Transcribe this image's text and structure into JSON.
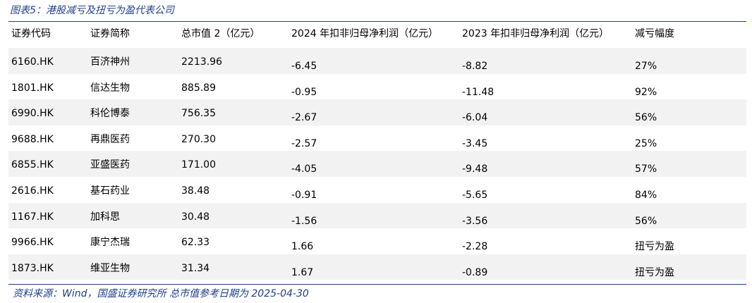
{
  "header": {
    "title": "图表5：港股减亏及扭亏为盈代表公司"
  },
  "table": {
    "columns": [
      "证券代码",
      "证券简称",
      "总市值 2（亿元）",
      "2024 年扣非归母净利润（亿元）",
      "2023 年扣非归母净利润（亿元）",
      "减亏幅度"
    ],
    "rows": [
      [
        "6160.HK",
        "百济神州",
        "2213.96",
        "-6.45",
        "-8.82",
        "27%"
      ],
      [
        "1801.HK",
        "信达生物",
        "885.89",
        "-0.95",
        "-11.48",
        "92%"
      ],
      [
        "6990.HK",
        "科伦博泰",
        "756.35",
        "-2.67",
        "-6.04",
        "56%"
      ],
      [
        "9688.HK",
        "再鼎医药",
        "270.30",
        "-2.57",
        "-3.45",
        "25%"
      ],
      [
        "6855.HK",
        "亚盛医药",
        "171.00",
        "-4.05",
        "-9.48",
        "57%"
      ],
      [
        "2616.HK",
        "基石药业",
        "38.48",
        "-0.91",
        "-5.65",
        "84%"
      ],
      [
        "1167.HK",
        "加科思",
        "30.48",
        "-1.56",
        "-3.56",
        "56%"
      ],
      [
        "9966.HK",
        "康宁杰瑞",
        "62.33",
        "1.66",
        "-2.28",
        "扭亏为盈"
      ],
      [
        "1873.HK",
        "维亚生物",
        "31.34",
        "1.67",
        "-0.89",
        "扭亏为盈"
      ]
    ]
  },
  "footer": {
    "source": "资料来源：Wind，国盛证券研究所 总市值参考日期为 2025-04-30"
  }
}
